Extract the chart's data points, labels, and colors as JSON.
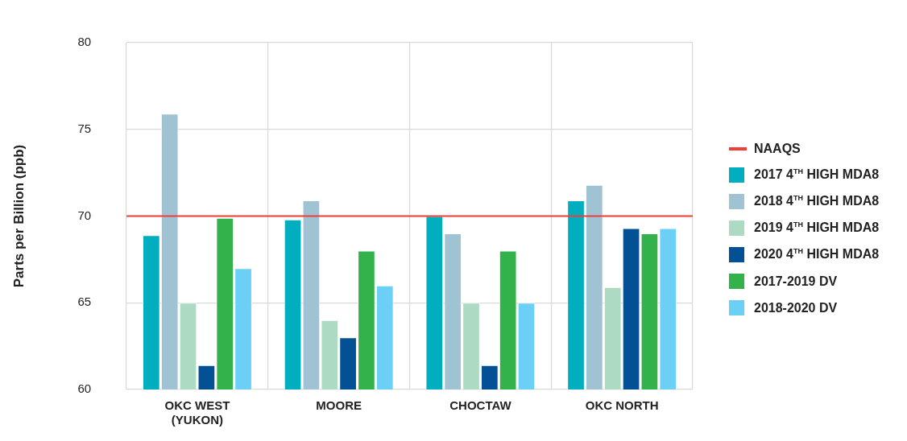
{
  "chart_data": {
    "type": "bar",
    "ylabel": "Parts per Billion (ppb)",
    "categories": [
      "OKC WEST\n(YUKON)",
      "MOORE",
      "CHOCTAW",
      "OKC NORTH"
    ],
    "series": [
      {
        "name": "2017 4$^{TH}$ HIGH MDA8",
        "color": "#00aec0",
        "values": [
          68.9,
          69.8,
          70,
          70.9
        ]
      },
      {
        "name": "2018 4$^{TH}$ HIGH MDA8",
        "color": "#a0c3d4",
        "values": [
          75.9,
          70.9,
          69,
          71.8
        ]
      },
      {
        "name": "2019 4$^{TH}$ HIGH MDA8",
        "color": "#acdac3",
        "values": [
          65,
          64,
          65,
          65.9
        ]
      },
      {
        "name": "2020 4$^{TH}$ HIGH MDA8",
        "color": "#035194",
        "values": [
          61.4,
          63,
          61.4,
          69.3
        ]
      },
      {
        "name": "2017-2019 DV",
        "color": "#33b24c",
        "values": [
          69.9,
          68,
          68,
          69
        ]
      },
      {
        "name": "2018-2020 DV",
        "color": "#6bcff6",
        "values": [
          67,
          66,
          65,
          69.3
        ]
      }
    ],
    "ref_lines": [
      {
        "axis": "y",
        "value": 70,
        "label": "NAAQS",
        "color": "#ee3e36"
      }
    ],
    "ylim": [
      60,
      80
    ],
    "yticks": [
      60,
      65,
      70,
      75,
      80
    ],
    "grid": true,
    "legend": "right"
  }
}
